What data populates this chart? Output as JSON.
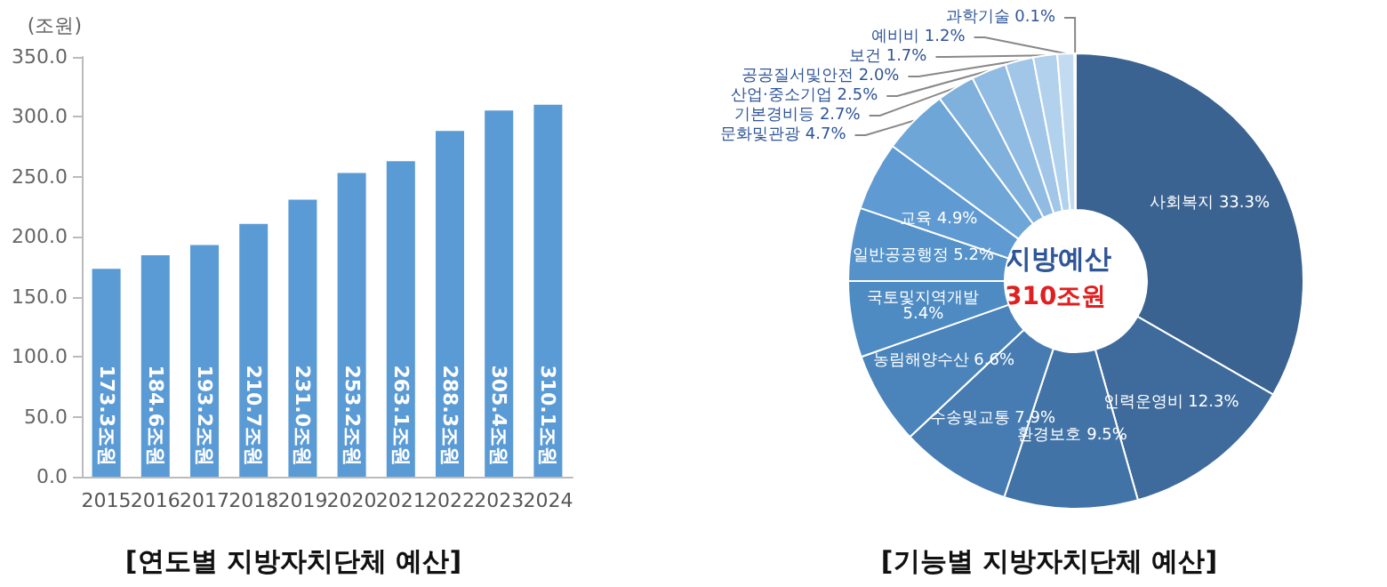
{
  "chart_data": [
    {
      "type": "bar",
      "title": "[연도별 지방자치단체 예산]",
      "ylabel": "(조원)",
      "categories": [
        "2015",
        "2016",
        "2017",
        "2018",
        "2019",
        "2020",
        "2021",
        "2022",
        "2023",
        "2024"
      ],
      "values": [
        173.3,
        184.6,
        193.2,
        210.7,
        231.0,
        253.2,
        263.1,
        288.3,
        305.4,
        310.1
      ],
      "value_labels": [
        "173.3조원",
        "184.6조원",
        "193.2조원",
        "210.7조원",
        "231.0조원",
        "253.2조원",
        "263.1조원",
        "288.3조원",
        "305.4조원",
        "310.1조원"
      ],
      "color": "#5b9bd5",
      "ylim": [
        0,
        350
      ],
      "yticks": [
        {
          "value": 0,
          "label": "0.0"
        },
        {
          "value": 50,
          "label": "50.0"
        },
        {
          "value": 100,
          "label": "100.0"
        },
        {
          "value": 150,
          "label": "150.0"
        },
        {
          "value": 200,
          "label": "200.0"
        },
        {
          "value": 250,
          "label": "250.0"
        },
        {
          "value": 300,
          "label": "300.0"
        },
        {
          "value": 350,
          "label": "350.0"
        }
      ],
      "grid": false,
      "legend": false
    },
    {
      "type": "donut",
      "title": "[기능별 지방자치단체 예산]",
      "annotations": [
        "지방예산",
        "310조원"
      ],
      "categories": [
        "사회복지",
        "인력운영비",
        "환경보호",
        "수송및교통",
        "농림해양수산",
        "국토및지역개발",
        "일반공공행정",
        "교육",
        "문화및관광",
        "기본경비등",
        "산업·중소기업",
        "공공질서및안전",
        "보건",
        "예비비",
        "과학기술"
      ],
      "values": [
        33.3,
        12.3,
        9.5,
        7.9,
        6.6,
        5.4,
        5.2,
        4.9,
        4.7,
        2.7,
        2.5,
        2.0,
        1.7,
        1.2,
        0.1
      ],
      "value_labels": [
        "33.3%",
        "12.3%",
        "9.5%",
        "7.9%",
        "6.6%",
        "5.4%",
        "5.2%",
        "4.9%",
        "4.7%",
        "2.7%",
        "2.5%",
        "2.0%",
        "1.7%",
        "1.2%",
        "0.1%"
      ],
      "colors": [
        "#3a6391",
        "#3e6b9c",
        "#4273a7",
        "#467cb2",
        "#4a84bb",
        "#4e8bc3",
        "#5592ca",
        "#5f9bd2",
        "#6ea6d8",
        "#80b1dd",
        "#90bbe2",
        "#a1c6e7",
        "#b2d1ec",
        "#c3dbf0",
        "#d3e5f5"
      ],
      "legend": false
    }
  ]
}
